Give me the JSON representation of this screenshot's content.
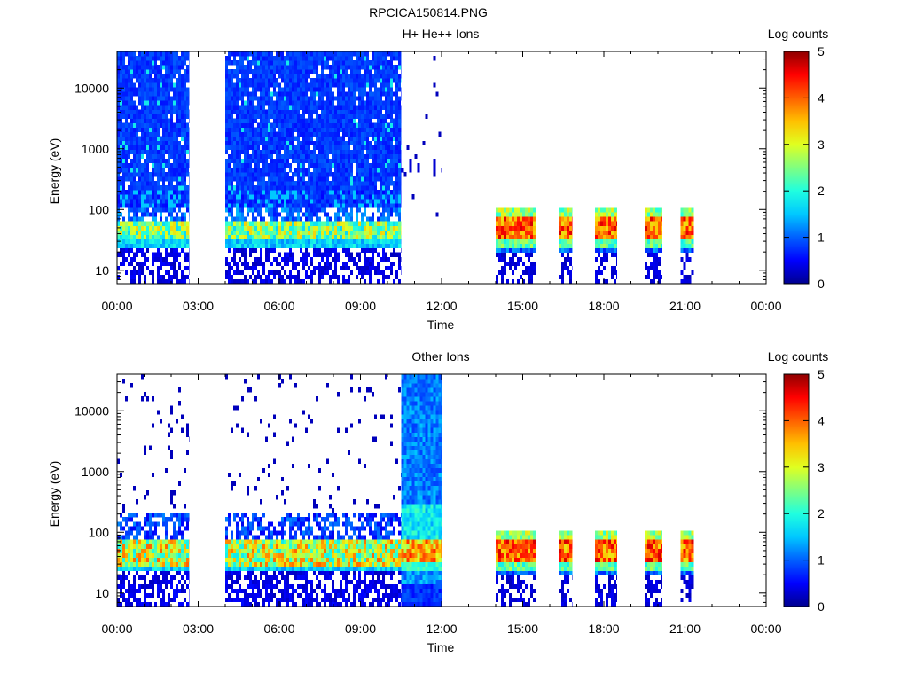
{
  "page": {
    "title": "RPCICA150814.PNG"
  },
  "colorbar": {
    "label": "Log counts",
    "ticks": [
      "0",
      "1",
      "2",
      "3",
      "4",
      "5"
    ],
    "range": [
      0,
      5
    ],
    "colormap": [
      "#00008f",
      "#0000ff",
      "#0060ff",
      "#00c8ff",
      "#20ffdf",
      "#80ff80",
      "#e0ff20",
      "#ffc000",
      "#ff6000",
      "#ff0000",
      "#8f0000"
    ]
  },
  "chart_data": [
    {
      "type": "heatmap",
      "title": "H+ He++ Ions",
      "xlabel": "Time",
      "ylabel": "Energy (eV)",
      "xlim_hours": [
        0,
        24
      ],
      "ylim_ev": [
        6,
        40000
      ],
      "yscale": "log",
      "x_tick_labels": [
        "00:00",
        "03:00",
        "06:00",
        "09:00",
        "12:00",
        "15:00",
        "18:00",
        "21:00",
        "00:00"
      ],
      "y_tick_values": [
        10,
        100,
        1000,
        10000
      ],
      "y_tick_labels": [
        "10",
        "100",
        "1000",
        "10000"
      ],
      "data_intervals": [
        {
          "start": "00:00",
          "end": "02:40",
          "profile": "solarwind"
        },
        {
          "start": "04:00",
          "end": "10:30",
          "profile": "solarwind"
        },
        {
          "start": "10:30",
          "end": "12:00",
          "profile": "sparse"
        },
        {
          "start": "14:00",
          "end": "15:30",
          "profile": "lowband"
        },
        {
          "start": "16:20",
          "end": "16:50",
          "profile": "lowband"
        },
        {
          "start": "17:40",
          "end": "18:30",
          "profile": "lowband"
        },
        {
          "start": "19:30",
          "end": "20:10",
          "profile": "lowband"
        },
        {
          "start": "20:50",
          "end": "21:20",
          "profile": "lowband"
        }
      ]
    },
    {
      "type": "heatmap",
      "title": "Other Ions",
      "xlabel": "Time",
      "ylabel": "Energy (eV)",
      "xlim_hours": [
        0,
        24
      ],
      "ylim_ev": [
        6,
        40000
      ],
      "yscale": "log",
      "x_tick_labels": [
        "00:00",
        "03:00",
        "06:00",
        "09:00",
        "12:00",
        "15:00",
        "18:00",
        "21:00",
        "00:00"
      ],
      "y_tick_values": [
        10,
        100,
        1000,
        10000
      ],
      "y_tick_labels": [
        "10",
        "100",
        "1000",
        "10000"
      ],
      "data_intervals": [
        {
          "start": "00:00",
          "end": "02:40",
          "profile": "scattered"
        },
        {
          "start": "04:00",
          "end": "10:30",
          "profile": "scattered"
        },
        {
          "start": "10:30",
          "end": "12:00",
          "profile": "dense"
        },
        {
          "start": "14:00",
          "end": "15:30",
          "profile": "lowband"
        },
        {
          "start": "16:20",
          "end": "16:50",
          "profile": "lowband"
        },
        {
          "start": "17:40",
          "end": "18:30",
          "profile": "lowband"
        },
        {
          "start": "19:30",
          "end": "20:10",
          "profile": "lowband"
        },
        {
          "start": "20:50",
          "end": "21:20",
          "profile": "lowband"
        }
      ]
    }
  ]
}
